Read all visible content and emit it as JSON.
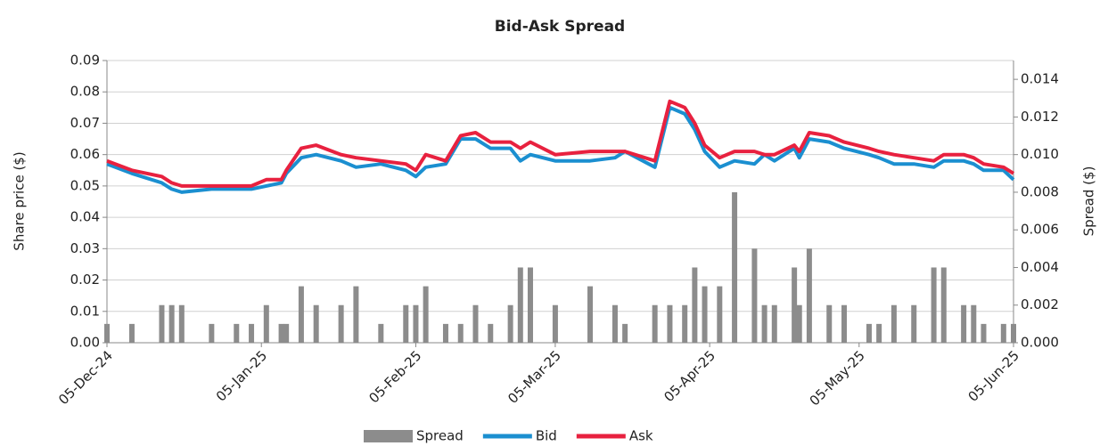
{
  "chart_data": {
    "type": "bar_line_combo",
    "title": "Bid-Ask Spread",
    "y_label": "Share price ($)",
    "y2_label": "Spread ($)",
    "x": [
      "2024-12-05",
      "2024-12-10",
      "2024-12-16",
      "2024-12-18",
      "2024-12-20",
      "2024-12-26",
      "2024-12-31",
      "2025-01-03",
      "2025-01-06",
      "2025-01-09",
      "2025-01-10",
      "2025-01-13",
      "2025-01-16",
      "2025-01-21",
      "2025-01-24",
      "2025-01-29",
      "2025-02-03",
      "2025-02-05",
      "2025-02-07",
      "2025-02-11",
      "2025-02-14",
      "2025-02-17",
      "2025-02-20",
      "2025-02-24",
      "2025-02-26",
      "2025-02-28",
      "2025-03-05",
      "2025-03-12",
      "2025-03-17",
      "2025-03-19",
      "2025-03-25",
      "2025-03-28",
      "2025-03-31",
      "2025-04-02",
      "2025-04-04",
      "2025-04-07",
      "2025-04-10",
      "2025-04-14",
      "2025-04-16",
      "2025-04-18",
      "2025-04-22",
      "2025-04-23",
      "2025-04-25",
      "2025-04-29",
      "2025-05-02",
      "2025-05-07",
      "2025-05-09",
      "2025-05-12",
      "2025-05-16",
      "2025-05-20",
      "2025-05-22",
      "2025-05-26",
      "2025-05-28",
      "2025-05-30",
      "2025-06-03",
      "2025-06-05"
    ],
    "series": [
      {
        "name": "Spread",
        "type": "bar",
        "axis": "y2",
        "color": "#8c8c8c",
        "values": [
          0.001,
          0.001,
          0.002,
          0.002,
          0.002,
          0.001,
          0.001,
          0.001,
          0.002,
          0.001,
          0.001,
          0.003,
          0.002,
          0.002,
          0.003,
          0.001,
          0.002,
          0.002,
          0.003,
          0.001,
          0.001,
          0.002,
          0.001,
          0.002,
          0.004,
          0.004,
          0.002,
          0.003,
          0.002,
          0.001,
          0.002,
          0.002,
          0.002,
          0.004,
          0.003,
          0.003,
          0.008,
          0.005,
          0.002,
          0.002,
          0.004,
          0.002,
          0.005,
          0.002,
          0.002,
          0.001,
          0.001,
          0.002,
          0.002,
          0.004,
          0.004,
          0.002,
          0.002,
          0.001,
          0.001,
          0.001
        ]
      },
      {
        "name": "Bid",
        "type": "line",
        "color": "#1b8fd0",
        "values": [
          0.057,
          0.054,
          0.051,
          0.049,
          0.048,
          0.049,
          0.049,
          0.049,
          0.05,
          0.051,
          0.054,
          0.059,
          0.06,
          0.058,
          0.056,
          0.057,
          0.055,
          0.053,
          0.056,
          0.057,
          0.065,
          0.065,
          0.062,
          0.062,
          0.058,
          0.06,
          0.058,
          0.058,
          0.059,
          0.061,
          0.056,
          0.075,
          0.073,
          0.068,
          0.061,
          0.056,
          0.058,
          0.057,
          0.06,
          0.058,
          0.062,
          0.059,
          0.065,
          0.064,
          0.062,
          0.06,
          0.059,
          0.057,
          0.057,
          0.056,
          0.058,
          0.058,
          0.057,
          0.055,
          0.055,
          0.052
        ]
      },
      {
        "name": "Ask",
        "type": "line",
        "color": "#e8213f",
        "values": [
          0.058,
          0.055,
          0.053,
          0.051,
          0.05,
          0.05,
          0.05,
          0.05,
          0.052,
          0.052,
          0.055,
          0.062,
          0.063,
          0.06,
          0.059,
          0.058,
          0.057,
          0.055,
          0.06,
          0.058,
          0.066,
          0.067,
          0.064,
          0.064,
          0.062,
          0.064,
          0.06,
          0.061,
          0.061,
          0.061,
          0.058,
          0.077,
          0.075,
          0.07,
          0.063,
          0.059,
          0.061,
          0.061,
          0.06,
          0.06,
          0.063,
          0.061,
          0.067,
          0.066,
          0.064,
          0.062,
          0.061,
          0.06,
          0.059,
          0.058,
          0.06,
          0.06,
          0.059,
          0.057,
          0.056,
          0.054
        ]
      }
    ],
    "xlim": [
      "2024-12-05",
      "2025-06-05"
    ],
    "xticks": [
      {
        "value": "2024-12-05",
        "label": "05-Dec-24"
      },
      {
        "value": "2025-01-05",
        "label": "05-Jan-25"
      },
      {
        "value": "2025-02-05",
        "label": "05-Feb-25"
      },
      {
        "value": "2025-03-05",
        "label": "05-Mar-25"
      },
      {
        "value": "2025-04-05",
        "label": "05-Apr-25"
      },
      {
        "value": "2025-05-05",
        "label": "05-May-25"
      },
      {
        "value": "2025-06-05",
        "label": "05-Jun-25"
      }
    ],
    "ylim": [
      0,
      0.09
    ],
    "yticks": [
      {
        "value": 0,
        "label": "0.00"
      },
      0.01,
      0.02,
      0.03,
      0.04,
      0.05,
      0.06,
      0.07,
      0.08,
      0.09
    ],
    "y2lim": [
      0,
      0.015
    ],
    "y2ticks": [
      {
        "value": 0,
        "label": "0.000"
      },
      0.002,
      0.004,
      0.006,
      0.008,
      {
        "value": 0.01,
        "label": "0.010"
      },
      0.012,
      0.014
    ],
    "grid": true,
    "legend": "bottom"
  }
}
